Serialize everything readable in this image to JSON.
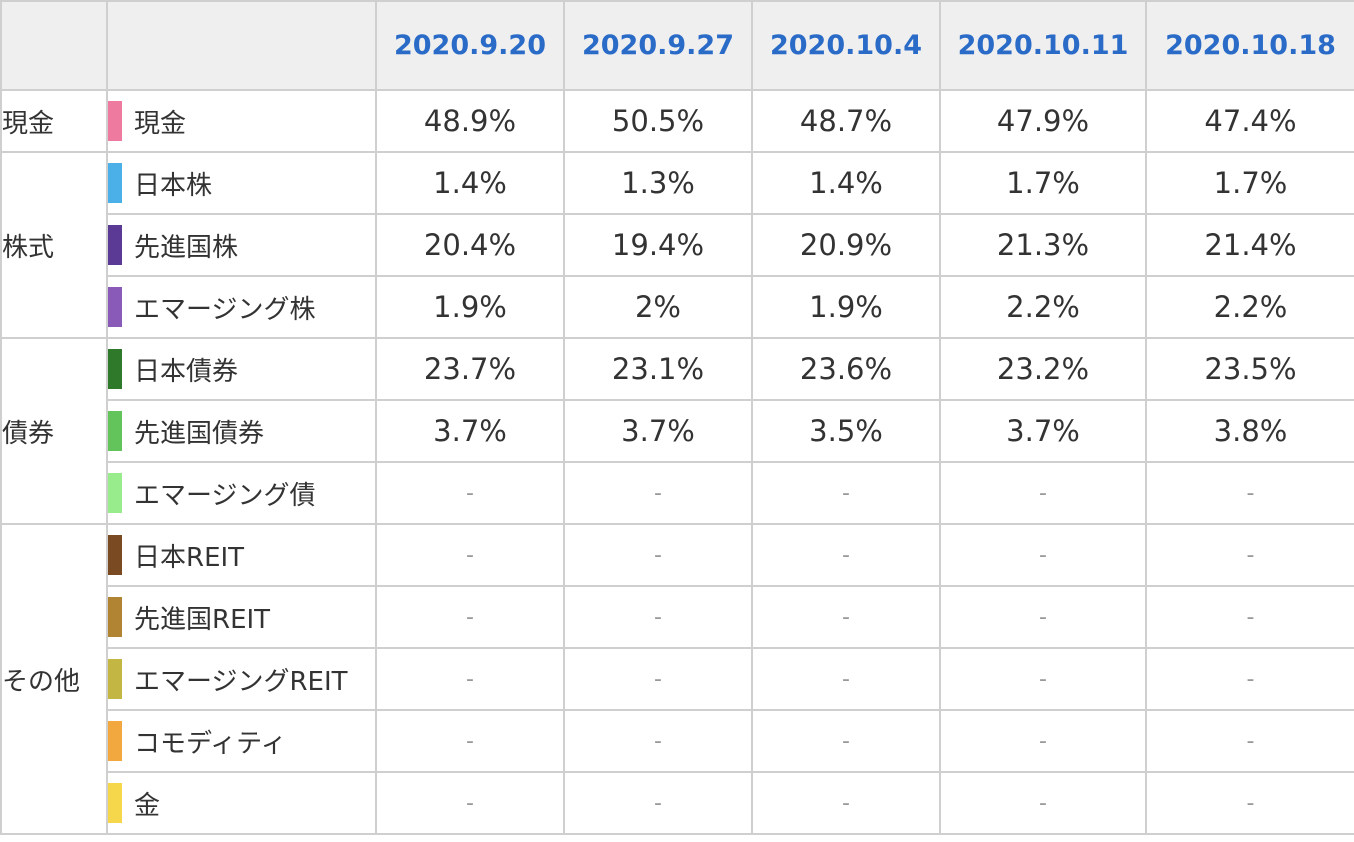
{
  "table": {
    "header_blank_1": "",
    "header_blank_2": "",
    "dates": [
      "2020.9.20",
      "2020.9.27",
      "2020.10.4",
      "2020.10.11",
      "2020.10.18"
    ],
    "groups": [
      {
        "category": "現金",
        "rows": [
          {
            "asset": "現金",
            "color": "#ee7aa0",
            "values": [
              "48.9%",
              "50.5%",
              "48.7%",
              "47.9%",
              "47.4%"
            ]
          }
        ]
      },
      {
        "category": "株式",
        "rows": [
          {
            "asset": "日本株",
            "color": "#4bb0e8",
            "values": [
              "1.4%",
              "1.3%",
              "1.4%",
              "1.7%",
              "1.7%"
            ]
          },
          {
            "asset": "先進国株",
            "color": "#5a3a94",
            "values": [
              "20.4%",
              "19.4%",
              "20.9%",
              "21.3%",
              "21.4%"
            ]
          },
          {
            "asset": "エマージング株",
            "color": "#8a5ab8",
            "values": [
              "1.9%",
              "2%",
              "1.9%",
              "2.2%",
              "2.2%"
            ]
          }
        ]
      },
      {
        "category": "債券",
        "rows": [
          {
            "asset": "日本債券",
            "color": "#2f7a2a",
            "values": [
              "23.7%",
              "23.1%",
              "23.6%",
              "23.2%",
              "23.5%"
            ]
          },
          {
            "asset": "先進国債券",
            "color": "#62c45a",
            "values": [
              "3.7%",
              "3.7%",
              "3.5%",
              "3.7%",
              "3.8%"
            ]
          },
          {
            "asset": "エマージング債",
            "color": "#98ec8c",
            "values": [
              "-",
              "-",
              "-",
              "-",
              "-"
            ]
          }
        ]
      },
      {
        "category": "その他",
        "rows": [
          {
            "asset": "日本REIT",
            "color": "#7a4a22",
            "values": [
              "-",
              "-",
              "-",
              "-",
              "-"
            ]
          },
          {
            "asset": "先進国REIT",
            "color": "#b08432",
            "values": [
              "-",
              "-",
              "-",
              "-",
              "-"
            ]
          },
          {
            "asset": "エマージングREIT",
            "color": "#c4b642",
            "values": [
              "-",
              "-",
              "-",
              "-",
              "-"
            ]
          },
          {
            "asset": "コモディティ",
            "color": "#f2a83e",
            "values": [
              "-",
              "-",
              "-",
              "-",
              "-"
            ]
          },
          {
            "asset": "金",
            "color": "#f6d64a",
            "values": [
              "-",
              "-",
              "-",
              "-",
              "-"
            ]
          }
        ]
      }
    ]
  }
}
